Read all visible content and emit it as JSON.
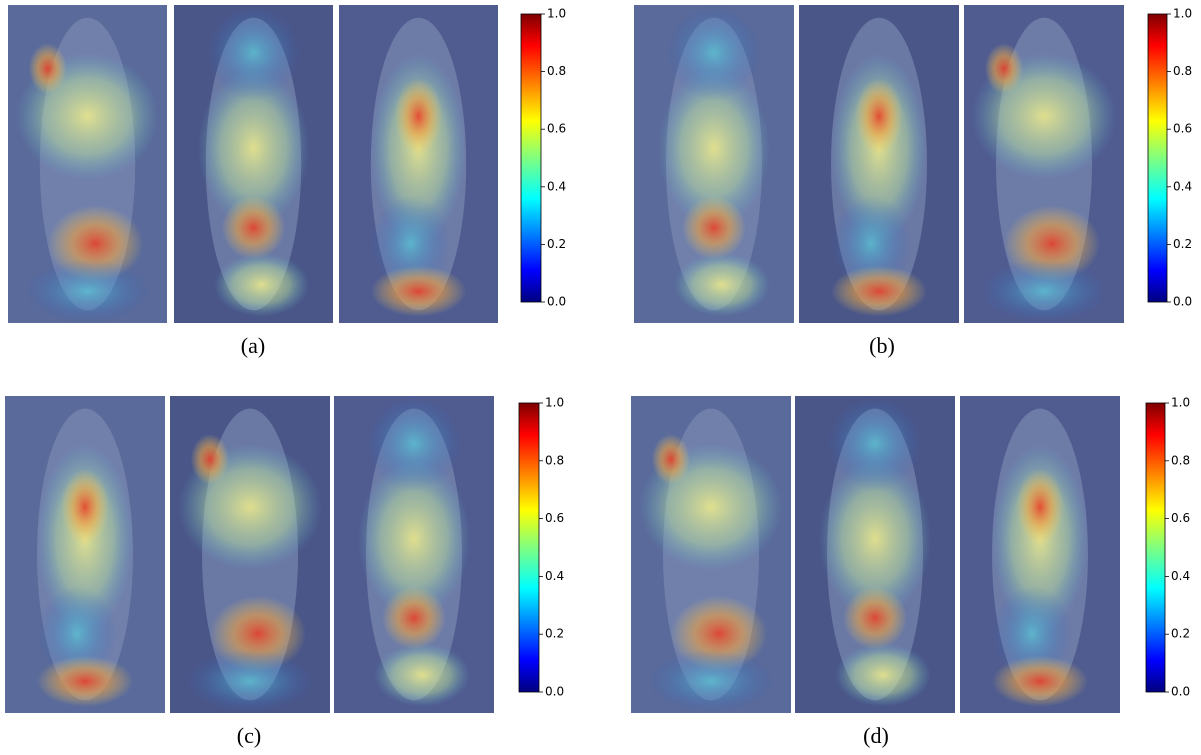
{
  "panels": [
    {
      "caption": "(a)",
      "colorbar": {
        "lim": [
          0,
          1
        ],
        "ticks": [
          {
            "value": 0,
            "label": "0.0"
          },
          0.2,
          0.4,
          0.6,
          0.8,
          {
            "value": 1,
            "label": "1.0"
          }
        ]
      }
    },
    {
      "caption": "(b)",
      "colorbar": {
        "lim": [
          0,
          1
        ],
        "ticks": [
          {
            "value": 0,
            "label": "0.0"
          },
          0.2,
          0.4,
          0.6,
          0.8,
          {
            "value": 1,
            "label": "1.0"
          }
        ]
      }
    },
    {
      "caption": "(c)",
      "colorbar": {
        "lim": [
          0,
          1
        ],
        "ticks": [
          {
            "value": 0,
            "label": "0.0"
          },
          0.2,
          0.4,
          0.6,
          0.8,
          {
            "value": 1,
            "label": "1.0"
          }
        ]
      }
    },
    {
      "caption": "(d)",
      "colorbar": {
        "lim": [
          0,
          1
        ],
        "ticks": [
          {
            "value": 0,
            "label": "0.0"
          },
          0.2,
          0.4,
          0.6,
          0.8,
          {
            "value": 1,
            "label": "1.0"
          }
        ]
      }
    }
  ]
}
